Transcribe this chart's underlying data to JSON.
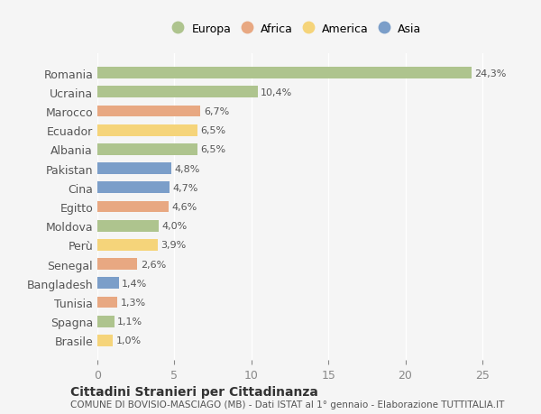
{
  "countries": [
    "Romania",
    "Ucraina",
    "Marocco",
    "Ecuador",
    "Albania",
    "Pakistan",
    "Cina",
    "Egitto",
    "Moldova",
    "Perù",
    "Senegal",
    "Bangladesh",
    "Tunisia",
    "Spagna",
    "Brasile"
  ],
  "values": [
    24.3,
    10.4,
    6.7,
    6.5,
    6.5,
    4.8,
    4.7,
    4.6,
    4.0,
    3.9,
    2.6,
    1.4,
    1.3,
    1.1,
    1.0
  ],
  "labels": [
    "24,3%",
    "10,4%",
    "6,7%",
    "6,5%",
    "6,5%",
    "4,8%",
    "4,7%",
    "4,6%",
    "4,0%",
    "3,9%",
    "2,6%",
    "1,4%",
    "1,3%",
    "1,1%",
    "1,0%"
  ],
  "categories": [
    "Europa",
    "Europa",
    "Africa",
    "America",
    "Europa",
    "Asia",
    "Asia",
    "Africa",
    "Europa",
    "America",
    "Africa",
    "Asia",
    "Africa",
    "Europa",
    "America"
  ],
  "colors": {
    "Europa": "#aec48e",
    "Africa": "#e8a882",
    "America": "#f5d47a",
    "Asia": "#7b9ec9"
  },
  "legend_order": [
    "Europa",
    "Africa",
    "America",
    "Asia"
  ],
  "title": "Cittadini Stranieri per Cittadinanza",
  "subtitle": "COMUNE DI BOVISIO-MASCIAGO (MB) - Dati ISTAT al 1° gennaio - Elaborazione TUTTITALIA.IT",
  "xlim": [
    0,
    26
  ],
  "xticks": [
    0,
    5,
    10,
    15,
    20,
    25
  ],
  "bg_color": "#f5f5f5",
  "grid_color": "#ffffff",
  "tick_color": "#888888",
  "label_color": "#555555"
}
